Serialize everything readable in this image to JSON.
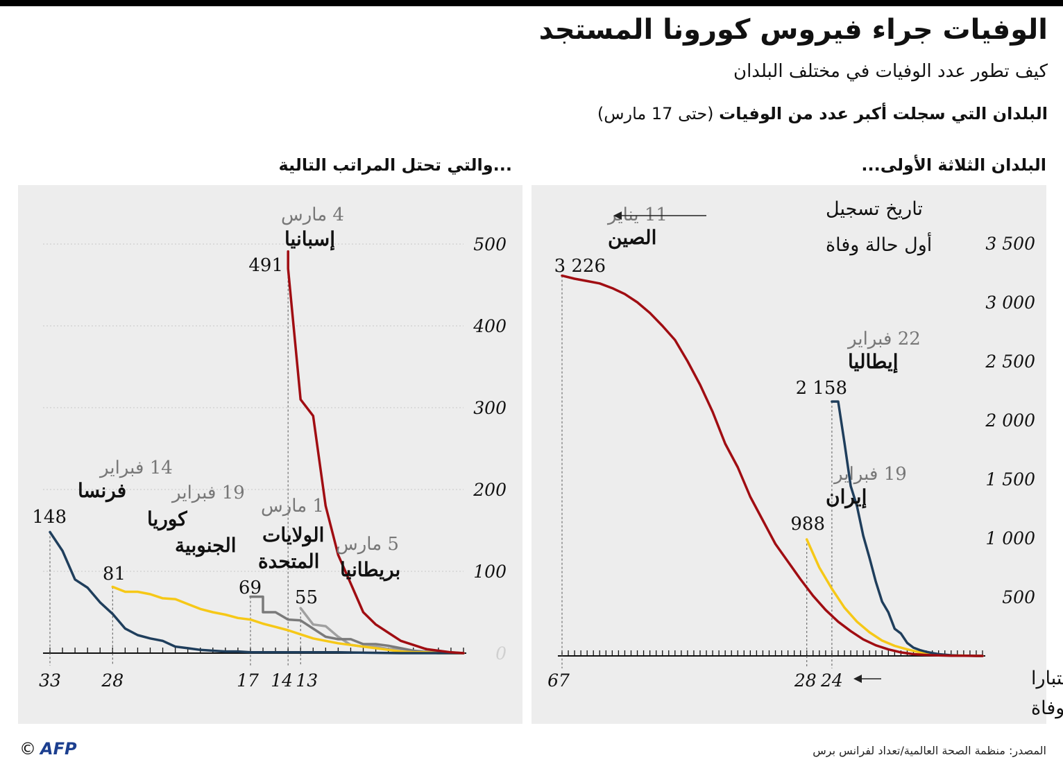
{
  "title": "الوفيات جراء فيروس كورونا المستجد",
  "subtitle": "كيف تطور عدد الوفيات في مختلف البلدان",
  "question": {
    "bold": "البلدان التي سجلت أكبر عدد من الوفيات",
    "normal": "(حتى 17 مارس)"
  },
  "panels": {
    "left_title": "...والتي تحتل المراتب التالية",
    "right_title": "البلدان الثلاثة الأولى..."
  },
  "source": "المصدر: منظمة الصحة العالمية/تعداد لفرانس برس",
  "logo": {
    "text": "AFP",
    "copyright": "©"
  },
  "colors": {
    "red": "#a00d12",
    "navy": "#1f3e5c",
    "yellow": "#f6c817",
    "gray_dark": "#7a7a7a",
    "gray_mid": "#a0a0a0",
    "grid": "#c8c8c8",
    "panel_bg": "#ededed"
  },
  "chart_data": [
    {
      "id": "left",
      "type": "line",
      "title": "...والتي تحتل المراتب التالية",
      "xlabel": "",
      "ylabel": "",
      "xlim": [
        0,
        33
      ],
      "xdir": "reversed",
      "ylim": [
        0,
        500
      ],
      "yticks": [
        0,
        100,
        200,
        300,
        400,
        500
      ],
      "xtick_labels": [
        33,
        28,
        17,
        14,
        13
      ],
      "grid": true,
      "series": [
        {
          "key": "spain",
          "name": "إسبانيا",
          "date": "4 مارس",
          "value": "491",
          "color": "#a00d12",
          "x": [
            14,
            14,
            13,
            12,
            11,
            10,
            9,
            8,
            7,
            6,
            5,
            4,
            3,
            2,
            1,
            0
          ],
          "y": [
            491,
            470,
            310,
            290,
            180,
            120,
            85,
            50,
            35,
            25,
            15,
            10,
            5,
            3,
            1,
            0
          ]
        },
        {
          "key": "france",
          "name": "فرنسا",
          "date": "14 فبراير",
          "value": "148",
          "color": "#1f3e5c",
          "x": [
            33,
            32,
            31,
            30,
            29,
            28,
            27,
            26,
            25,
            24,
            23,
            22,
            21,
            20,
            19,
            18,
            17,
            15,
            13,
            10,
            5,
            0
          ],
          "y": [
            148,
            125,
            90,
            80,
            62,
            48,
            30,
            22,
            18,
            15,
            8,
            6,
            4,
            3,
            2,
            2,
            1,
            1,
            1,
            1,
            0,
            0
          ]
        },
        {
          "key": "south-korea",
          "name": "كوريا الجنوبية",
          "date": "19 فبراير",
          "value": "81",
          "color": "#f6c817",
          "x": [
            28,
            27,
            26,
            25,
            24,
            23,
            22,
            21,
            20,
            19,
            18,
            17,
            16,
            15,
            14,
            13,
            12,
            11,
            10,
            9,
            8,
            7,
            6,
            5,
            4,
            3,
            2,
            1,
            0
          ],
          "y": [
            81,
            75,
            75,
            72,
            67,
            66,
            60,
            54,
            50,
            47,
            43,
            41,
            36,
            32,
            28,
            23,
            18,
            15,
            12,
            10,
            8,
            6,
            4,
            2,
            1,
            1,
            0,
            0,
            0
          ]
        },
        {
          "key": "usa",
          "name": "الولايات المتحدة",
          "date": "1 مارس",
          "value": "69",
          "color": "#7a7a7a",
          "x": [
            17,
            16,
            16,
            15,
            14,
            13,
            12,
            11,
            10,
            9,
            8,
            7,
            6,
            5,
            4,
            3,
            2,
            1,
            0
          ],
          "y": [
            69,
            69,
            50,
            50,
            41,
            40,
            30,
            20,
            17,
            17,
            11,
            11,
            9,
            6,
            3,
            1,
            0,
            0,
            0
          ]
        },
        {
          "key": "uk",
          "name": "بريطانيا",
          "date": "5 مارس",
          "value": "55",
          "color": "#a0a0a0",
          "x": [
            13,
            12,
            11,
            10,
            9,
            8,
            7,
            6,
            5,
            4,
            3,
            2,
            1,
            0
          ],
          "y": [
            55,
            35,
            33,
            20,
            10,
            8,
            8,
            5,
            5,
            3,
            2,
            1,
            1,
            0
          ]
        }
      ]
    },
    {
      "id": "right",
      "type": "line",
      "title": "البلدان الثلاثة الأولى...",
      "xlabel": "عدد الأيام اعتبارا من تسجيل أول وفاة",
      "ylabel": "",
      "xlim": [
        0,
        67
      ],
      "xdir": "reversed",
      "ylim": [
        0,
        3500
      ],
      "yticks": [
        500,
        1000,
        1500,
        2000,
        2500,
        3000,
        3500
      ],
      "xtick_labels": [
        67,
        28,
        24
      ],
      "grid": false,
      "series": [
        {
          "key": "china",
          "name": "الصين",
          "date": "11 يناير",
          "value": "3 226",
          "color": "#a00d12",
          "x": [
            67,
            65,
            63,
            61,
            59,
            57,
            55,
            53,
            51,
            49,
            47,
            45,
            43,
            41,
            39,
            37,
            35,
            33,
            31,
            29,
            27,
            25,
            23,
            21,
            19,
            17,
            15,
            13,
            11,
            9,
            7,
            5,
            3,
            1,
            0
          ],
          "y": [
            3226,
            3200,
            3180,
            3160,
            3120,
            3070,
            3000,
            2910,
            2800,
            2680,
            2500,
            2300,
            2070,
            1800,
            1600,
            1350,
            1150,
            950,
            800,
            650,
            510,
            390,
            290,
            210,
            140,
            90,
            55,
            30,
            15,
            8,
            4,
            2,
            1,
            0,
            0
          ]
        },
        {
          "key": "italy",
          "name": "إيطاليا",
          "date": "22 فبراير",
          "value": "2 158",
          "color": "#1f3e5c",
          "x": [
            24,
            23,
            22,
            21,
            20,
            19,
            18,
            17,
            16,
            15,
            14,
            13,
            12,
            11,
            10,
            9,
            8,
            7,
            6,
            5,
            4,
            3,
            2,
            1,
            0
          ],
          "y": [
            2158,
            2158,
            1810,
            1440,
            1270,
            1020,
            830,
            630,
            460,
            370,
            230,
            190,
            110,
            70,
            50,
            35,
            25,
            15,
            10,
            5,
            3,
            2,
            1,
            0,
            0
          ]
        },
        {
          "key": "iran",
          "name": "إيران",
          "date": "19 فبراير",
          "value": "988",
          "color": "#f6c817",
          "x": [
            28,
            26,
            24,
            22,
            20,
            18,
            16,
            14,
            12,
            10,
            8,
            6,
            4,
            2,
            0
          ],
          "y": [
            988,
            750,
            570,
            410,
            290,
            200,
            130,
            85,
            55,
            30,
            15,
            7,
            3,
            1,
            0
          ]
        }
      ]
    }
  ],
  "annotations": {
    "left": {
      "ytick_labels": [
        "0",
        "100",
        "200",
        "300",
        "400",
        "500"
      ],
      "xtick_labels": [
        "33",
        "28",
        "17",
        "14",
        "13"
      ],
      "labels": [
        {
          "key": "spain",
          "date": "4 مارس",
          "name": "إسبانيا",
          "value": "491"
        },
        {
          "key": "france",
          "date": "14 فبراير",
          "name": "فرنسا",
          "value": "148"
        },
        {
          "key": "south-korea",
          "date": "19 فبراير",
          "name1": "كوريا",
          "name2": "الجنوبية",
          "value": "81"
        },
        {
          "key": "usa",
          "date": "1 مارس",
          "name1": "الولايات",
          "name2": "المتحدة",
          "value": "69"
        },
        {
          "key": "uk",
          "date": "5 مارس",
          "name": "بريطانيا",
          "value": "55"
        }
      ]
    },
    "right": {
      "ytick_labels": [
        "500",
        "1 000",
        "1 500",
        "2 000",
        "2 500",
        "3 000",
        "3 500"
      ],
      "xtick_labels": [
        "67",
        "28",
        "24"
      ],
      "first_death_note": [
        "تاريخ تسجيل",
        "أول حالة وفاة"
      ],
      "days_note": [
        "عدد الأيام اعتبارا",
        "من تسجيل أول وفاة"
      ],
      "labels": [
        {
          "key": "china",
          "date": "11 يناير",
          "name": "الصين",
          "value": "3 226"
        },
        {
          "key": "italy",
          "date": "22 فبراير",
          "name": "إيطاليا",
          "value": "2 158"
        },
        {
          "key": "iran",
          "date": "19 فبراير",
          "name": "إيران",
          "value": "988"
        }
      ]
    }
  }
}
